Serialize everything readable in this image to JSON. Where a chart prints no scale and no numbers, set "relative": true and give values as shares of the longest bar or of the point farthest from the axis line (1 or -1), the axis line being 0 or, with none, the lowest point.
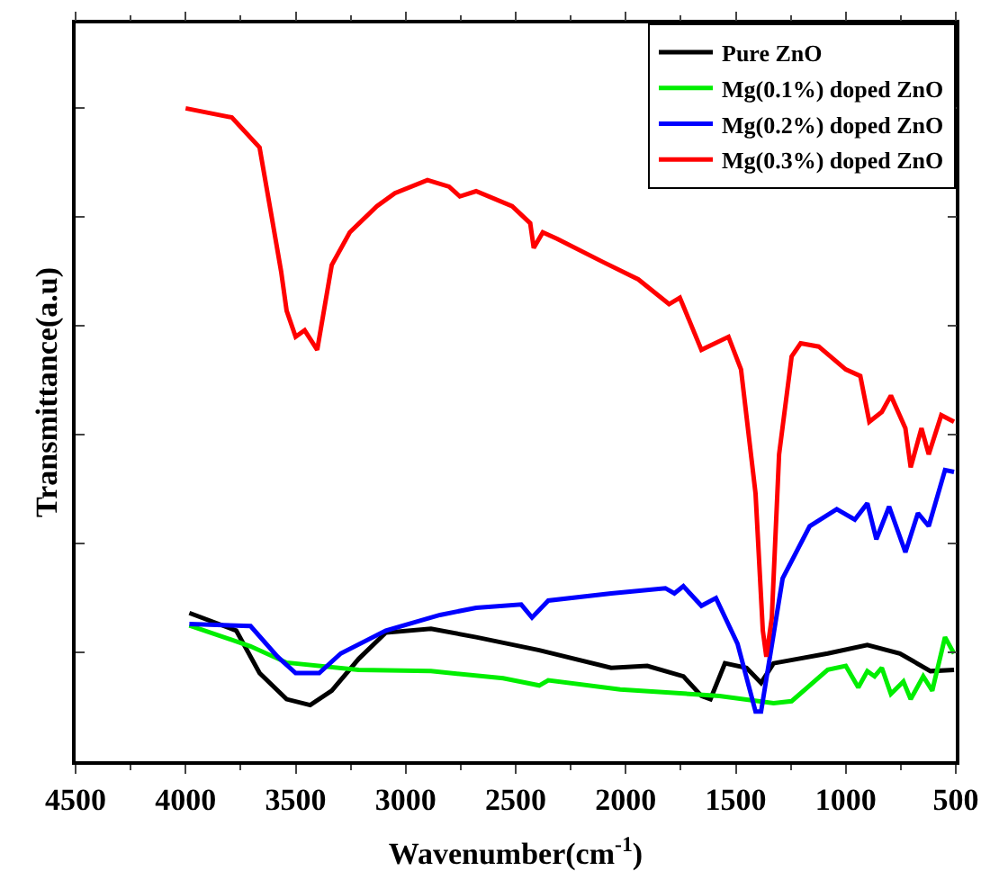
{
  "chart_data": {
    "type": "line",
    "relative": true,
    "xlabel": "Wavenumber(cm$^{-1}$)",
    "ylabel": "Transmittance(a.u)",
    "xlim": [
      4500,
      500
    ],
    "xticks": [
      4500,
      4000,
      3500,
      3000,
      2500,
      2000,
      1500,
      1000,
      500
    ],
    "tick_labels": "x",
    "legend": "top right",
    "marker": "none",
    "line_style": "solid",
    "series": [
      {
        "name": "Pure ZnO",
        "color": "#000000",
        "x": [
          3983,
          3770,
          3664,
          3541,
          3434,
          3336,
          3213,
          3090,
          2885,
          2680,
          2393,
          2066,
          1902,
          1738,
          1656,
          1615,
          1549,
          1451,
          1385,
          1328,
          1082,
          902,
          754,
          615,
          508
        ],
        "values": [
          0.227,
          0.2,
          0.135,
          0.095,
          0.086,
          0.108,
          0.157,
          0.197,
          0.203,
          0.19,
          0.17,
          0.143,
          0.146,
          0.13,
          0.1,
          0.095,
          0.15,
          0.143,
          0.12,
          0.15,
          0.165,
          0.178,
          0.165,
          0.138,
          0.14
        ]
      },
      {
        "name": "Mg(0.1%) doped ZnO",
        "color": "#00ee00",
        "x": [
          3983,
          3705,
          3541,
          3213,
          2885,
          2557,
          2393,
          2352,
          2025,
          1574,
          1328,
          1246,
          1082,
          1000,
          943,
          902,
          869,
          836,
          795,
          738,
          705,
          648,
          607,
          549,
          508
        ],
        "values": [
          0.208,
          0.176,
          0.151,
          0.14,
          0.138,
          0.127,
          0.116,
          0.124,
          0.11,
          0.1,
          0.089,
          0.092,
          0.14,
          0.146,
          0.113,
          0.138,
          0.13,
          0.143,
          0.103,
          0.122,
          0.095,
          0.13,
          0.108,
          0.19,
          0.165
        ]
      },
      {
        "name": "Mg(0.2%) doped ZnO",
        "color": "#0000ff",
        "x": [
          3983,
          3705,
          3582,
          3500,
          3393,
          3295,
          3090,
          2844,
          2680,
          2475,
          2426,
          2352,
          2066,
          1820,
          1779,
          1738,
          1656,
          1590,
          1492,
          1410,
          1385,
          1287,
          1164,
          1041,
          959,
          902,
          861,
          803,
          729,
          672,
          623,
          549,
          508
        ],
        "values": [
          0.21,
          0.207,
          0.16,
          0.135,
          0.135,
          0.165,
          0.2,
          0.224,
          0.235,
          0.24,
          0.22,
          0.246,
          0.257,
          0.265,
          0.257,
          0.268,
          0.238,
          0.25,
          0.18,
          0.076,
          0.076,
          0.28,
          0.36,
          0.386,
          0.37,
          0.395,
          0.34,
          0.39,
          0.32,
          0.38,
          0.36,
          0.446,
          0.443
        ]
      },
      {
        "name": "Mg(0.3%) doped ZnO",
        "color": "#ff0000",
        "x": [
          4000,
          3790,
          3664,
          3607,
          3566,
          3541,
          3500,
          3459,
          3402,
          3336,
          3254,
          3131,
          3049,
          2901,
          2803,
          2754,
          2680,
          2516,
          2434,
          2418,
          2377,
          2311,
          2106,
          1943,
          1803,
          1754,
          1656,
          1533,
          1476,
          1410,
          1377,
          1361,
          1336,
          1303,
          1246,
          1205,
          1123,
          1000,
          934,
          893,
          836,
          795,
          729,
          705,
          656,
          623,
          566,
          508
        ],
        "values": [
          1.0,
          0.986,
          0.94,
          0.83,
          0.75,
          0.69,
          0.65,
          0.66,
          0.63,
          0.76,
          0.81,
          0.85,
          0.87,
          0.89,
          0.88,
          0.865,
          0.873,
          0.85,
          0.824,
          0.786,
          0.81,
          0.8,
          0.765,
          0.738,
          0.7,
          0.71,
          0.63,
          0.65,
          0.6,
          0.41,
          0.2,
          0.16,
          0.22,
          0.47,
          0.62,
          0.64,
          0.635,
          0.6,
          0.59,
          0.52,
          0.535,
          0.56,
          0.51,
          0.45,
          0.51,
          0.47,
          0.53,
          0.52
        ]
      }
    ]
  }
}
